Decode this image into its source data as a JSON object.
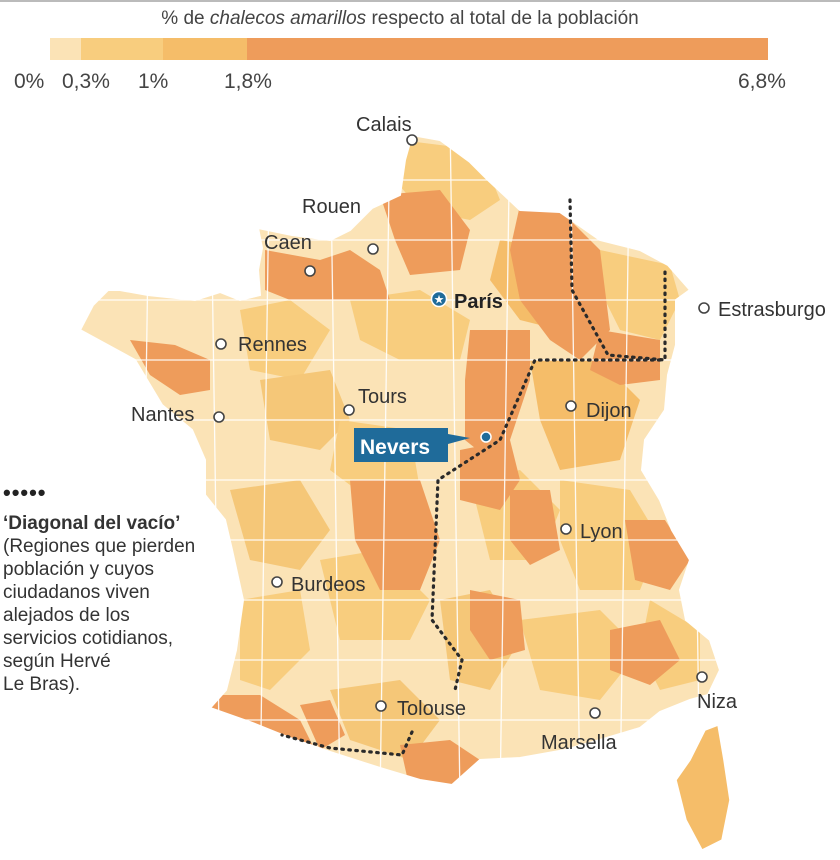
{
  "legend": {
    "title_prefix": "% de ",
    "title_italic": "chalecos amarillos",
    "title_suffix": " respecto al total de la población",
    "ticks": [
      "0%",
      "0,3%",
      "1%",
      "1,8%",
      "6,8%"
    ],
    "colors": [
      "#fbe3b6",
      "#f8cd7e",
      "#f5bd69",
      "#ee9c5b"
    ]
  },
  "cities": {
    "calais": "Calais",
    "rouen": "Rouen",
    "caen": "Caen",
    "paris": "París",
    "rennes": "Rennes",
    "estrasburgo": "Estrasburgo",
    "tours": "Tours",
    "nantes": "Nantes",
    "dijon": "Dijon",
    "nevers": "Nevers",
    "lyon": "Lyon",
    "burdeos": "Burdeos",
    "tolouse": "Tolouse",
    "niza": "Niza",
    "marsella": "Marsella"
  },
  "annotation": {
    "title": "‘Diagonal del vacío’",
    "lines": [
      "(Regiones que pierden",
      "población y cuyos",
      "ciudadanos viven",
      "alejados de los",
      "servicios cotidianos,",
      "según Hervé",
      "Le Bras)."
    ]
  }
}
